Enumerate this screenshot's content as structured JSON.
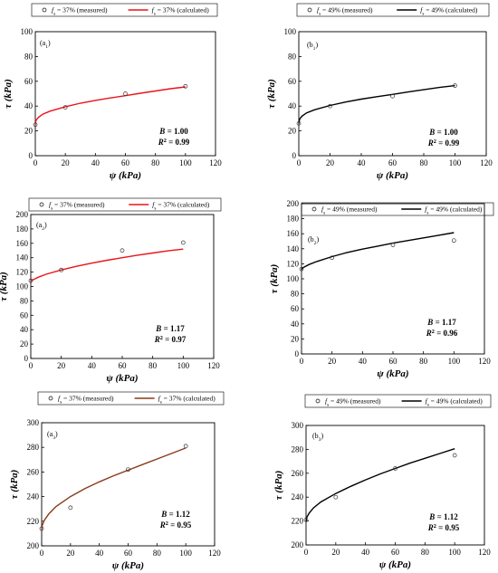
{
  "chart_data": [
    {
      "type": "line",
      "panel_label": "(a1)",
      "xlabel": "ψ (kPa)",
      "ylabel": "τ (kPa)",
      "xlim": [
        0,
        120
      ],
      "ylim": [
        0,
        100
      ],
      "xticks": [
        "0",
        "20",
        "40",
        "60",
        "80",
        "100",
        "120"
      ],
      "yticks": [
        "0",
        "20",
        "40",
        "60",
        "80",
        "100"
      ],
      "color": "#e8141b",
      "legend_position": "top",
      "series": [
        {
          "name": "fs = 37% (measured)",
          "style": "markers",
          "x": [
            0,
            20,
            60,
            100
          ],
          "y": [
            25,
            39,
            50,
            56
          ]
        },
        {
          "name": "fs = 37% (calculated)",
          "style": "line",
          "x": [
            0,
            0.5,
            2,
            5,
            10,
            20,
            30,
            40,
            50,
            60,
            70,
            80,
            90,
            100
          ],
          "y": [
            25,
            28.5,
            30.8,
            33.5,
            36,
            39.5,
            42.3,
            44.6,
            46.6,
            48.4,
            50.4,
            52.2,
            54,
            55.5
          ]
        }
      ],
      "stats": {
        "B": "B = 1.00",
        "R2": "R2 = 0.99"
      }
    },
    {
      "type": "line",
      "panel_label": "(b1)",
      "xlabel": "ψ (kPa)",
      "ylabel": "τ (kPa)",
      "xlim": [
        0,
        120
      ],
      "ylim": [
        0,
        100
      ],
      "xticks": [
        "0",
        "20",
        "40",
        "60",
        "80",
        "100",
        "120"
      ],
      "yticks": [
        "0",
        "20",
        "40",
        "60",
        "80",
        "100"
      ],
      "color": "#000000",
      "legend_position": "top",
      "series": [
        {
          "name": "fs = 49% (measured)",
          "style": "markers",
          "x": [
            0,
            20,
            60,
            100
          ],
          "y": [
            26,
            40,
            48,
            56.5
          ]
        },
        {
          "name": "fs = 49% (calculated)",
          "style": "line",
          "x": [
            0,
            0.5,
            2,
            5,
            10,
            20,
            30,
            40,
            50,
            60,
            70,
            80,
            90,
            100
          ],
          "y": [
            26,
            29.5,
            31.8,
            34.5,
            37,
            40.5,
            43.3,
            45.6,
            47.6,
            49.4,
            51.4,
            53.2,
            55,
            56.5
          ]
        }
      ],
      "stats": {
        "B": "B = 1.00",
        "R2": "R2 = 0.99"
      }
    },
    {
      "type": "line",
      "panel_label": "(a2)",
      "xlabel": "ψ (kPa)",
      "ylabel": "τ (kPa)",
      "xlim": [
        0,
        120
      ],
      "ylim": [
        0,
        200
      ],
      "xticks": [
        "0",
        "20",
        "40",
        "60",
        "80",
        "100",
        "120"
      ],
      "yticks": [
        "0",
        "20",
        "40",
        "60",
        "80",
        "100",
        "120",
        "140",
        "160",
        "180",
        "200"
      ],
      "color": "#e8141b",
      "legend_position": "top",
      "series": [
        {
          "name": "fs = 37% (measured)",
          "style": "markers",
          "x": [
            0,
            20,
            60,
            100
          ],
          "y": [
            108,
            123,
            150,
            161
          ]
        },
        {
          "name": "fs = 37% (calculated)",
          "style": "line",
          "x": [
            0,
            0.5,
            2,
            5,
            10,
            20,
            30,
            40,
            50,
            60,
            70,
            80,
            90,
            100
          ],
          "y": [
            107,
            108.5,
            110,
            113,
            117,
            123,
            128,
            132.5,
            136.5,
            140,
            143.5,
            146.5,
            149.5,
            152
          ]
        }
      ],
      "stats": {
        "B": "B = 1.17",
        "R2": "R2 = 0.97"
      }
    },
    {
      "type": "line",
      "panel_label": "(b2)",
      "xlabel": "ψ (kPa)",
      "ylabel": "τ (kPa)",
      "xlim": [
        0,
        120
      ],
      "ylim": [
        0,
        200
      ],
      "xticks": [
        "0",
        "20",
        "40",
        "60",
        "80",
        "100",
        "120"
      ],
      "yticks": [
        "0",
        "20",
        "40",
        "60",
        "80",
        "100",
        "120",
        "140",
        "160",
        "180",
        "200"
      ],
      "color": "#000000",
      "legend_position": "top",
      "series": [
        {
          "name": "fs = 49% (measured)",
          "style": "markers",
          "x": [
            0,
            20,
            60,
            100
          ],
          "y": [
            113,
            128,
            145,
            151
          ]
        },
        {
          "name": "fs = 49% (calculated)",
          "style": "line",
          "x": [
            0,
            0.5,
            2,
            5,
            10,
            20,
            30,
            40,
            50,
            60,
            70,
            80,
            90,
            100
          ],
          "y": [
            112,
            114,
            116,
            119,
            123,
            129.5,
            135,
            139.5,
            143.5,
            147.5,
            151,
            154.5,
            158,
            161.5
          ]
        }
      ],
      "stats": {
        "B": "B = 1.17",
        "R2": "R2 = 0.96"
      }
    },
    {
      "type": "line",
      "panel_label": "(a3)",
      "xlabel": "ψ (kPa)",
      "ylabel": "τ (kPa)",
      "xlim": [
        0,
        120
      ],
      "ylim": [
        200,
        300
      ],
      "xticks": [
        "0",
        "20",
        "40",
        "60",
        "80",
        "100",
        "120"
      ],
      "yticks": [
        "200",
        "220",
        "240",
        "260",
        "280",
        "300"
      ],
      "color": "#8b3a1a",
      "legend_position": "top",
      "series": [
        {
          "name": "fs = 37% (measured)",
          "style": "markers",
          "x": [
            0,
            20,
            60,
            100
          ],
          "y": [
            214,
            231,
            262,
            281
          ]
        },
        {
          "name": "fs = 37% (calculated)",
          "style": "line",
          "x": [
            0,
            0.5,
            2,
            5,
            10,
            20,
            30,
            40,
            50,
            60,
            70,
            80,
            90,
            100
          ],
          "y": [
            213,
            217,
            221,
            226,
            232,
            240,
            246.5,
            252,
            257,
            261.5,
            266,
            270.5,
            275,
            279.5
          ]
        }
      ],
      "stats": {
        "B": "B = 1.12",
        "R2": "R2 = 0.95"
      }
    },
    {
      "type": "line",
      "panel_label": "(b3)",
      "xlabel": "ψ (kPa)",
      "ylabel": "τ (kPa)",
      "xlim": [
        0,
        120
      ],
      "ylim": [
        200,
        300
      ],
      "xticks": [
        "0",
        "20",
        "40",
        "60",
        "80",
        "100",
        "120"
      ],
      "yticks": [
        "200",
        "220",
        "240",
        "260",
        "280",
        "300"
      ],
      "color": "#000000",
      "legend_position": "top",
      "series": [
        {
          "name": "fs = 49% (measured)",
          "style": "markers",
          "x": [
            0,
            20,
            60,
            100
          ],
          "y": [
            221,
            240,
            264,
            275
          ]
        },
        {
          "name": "fs = 49% (calculated)",
          "style": "line",
          "x": [
            0,
            0.5,
            2,
            5,
            10,
            20,
            30,
            40,
            50,
            60,
            70,
            80,
            90,
            100
          ],
          "y": [
            220,
            223,
            226.5,
            231,
            236,
            243,
            249,
            254.5,
            259.5,
            264,
            268.5,
            272.5,
            276.5,
            280.5
          ]
        }
      ],
      "stats": {
        "B": "B = 1.12",
        "R2": "R2 = 0.95"
      }
    }
  ]
}
